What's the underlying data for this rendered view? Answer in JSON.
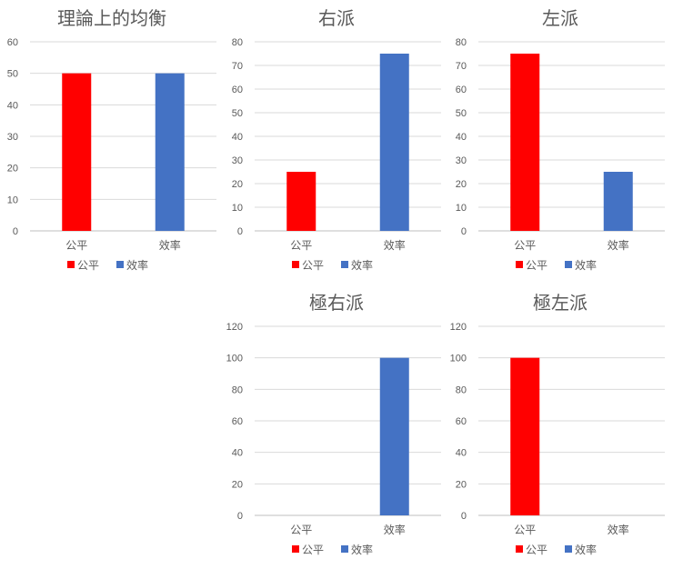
{
  "colors": {
    "fairness": "#ff0000",
    "efficiency": "#4472c4"
  },
  "chart_data": [
    {
      "type": "bar",
      "title": "理論上的均衡",
      "categories": [
        "公平",
        "效率"
      ],
      "values": [
        50,
        50
      ],
      "ylim": [
        0,
        60
      ],
      "ticks": [
        0,
        10,
        20,
        30,
        40,
        50,
        60
      ],
      "legend": [
        "公平",
        "效率"
      ],
      "legend_position": "bottom",
      "grid": true
    },
    {
      "type": "bar",
      "title": "右派",
      "categories": [
        "公平",
        "效率"
      ],
      "values": [
        25,
        75
      ],
      "ylim": [
        0,
        80
      ],
      "ticks": [
        0,
        10,
        20,
        30,
        40,
        50,
        60,
        70,
        80
      ],
      "legend": [
        "公平",
        "效率"
      ],
      "legend_position": "bottom",
      "grid": true
    },
    {
      "type": "bar",
      "title": "左派",
      "categories": [
        "公平",
        "效率"
      ],
      "values": [
        75,
        25
      ],
      "ylim": [
        0,
        80
      ],
      "ticks": [
        0,
        10,
        20,
        30,
        40,
        50,
        60,
        70,
        80
      ],
      "legend": [
        "公平",
        "效率"
      ],
      "legend_position": "bottom",
      "grid": true
    },
    {
      "type": "bar",
      "title": "極右派",
      "categories": [
        "公平",
        "效率"
      ],
      "values": [
        0,
        100
      ],
      "ylim": [
        0,
        120
      ],
      "ticks": [
        0,
        20,
        40,
        60,
        80,
        100,
        120
      ],
      "legend": [
        "公平",
        "效率"
      ],
      "legend_position": "bottom",
      "grid": true
    },
    {
      "type": "bar",
      "title": "極左派",
      "categories": [
        "公平",
        "效率"
      ],
      "values": [
        100,
        0
      ],
      "ylim": [
        0,
        120
      ],
      "ticks": [
        0,
        20,
        40,
        60,
        80,
        100,
        120
      ],
      "legend": [
        "公平",
        "效率"
      ],
      "legend_position": "bottom",
      "grid": true
    }
  ]
}
